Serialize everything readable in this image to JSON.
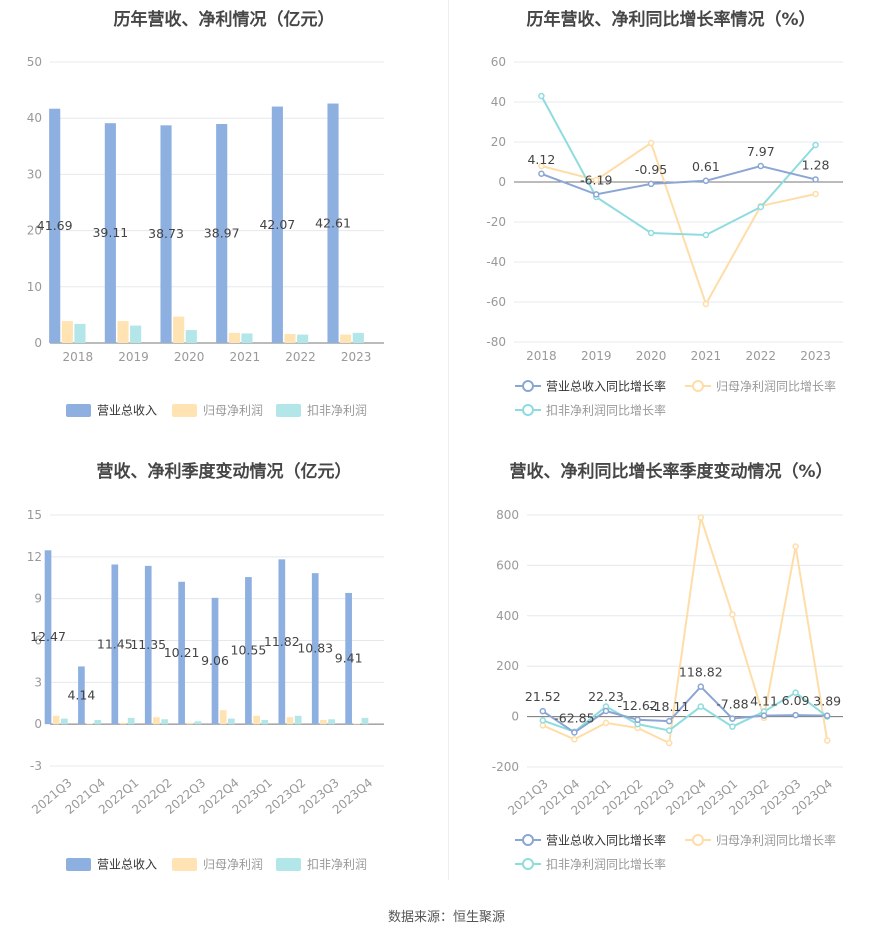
{
  "colors": {
    "revenue": "#8eb0e0",
    "net_profit": "#ffe3b3",
    "deducted_profit": "#b2e6e8",
    "revenue_line": "#8ba6d4",
    "net_profit_line": "#ffdda8",
    "deducted_line": "#8fdcdf",
    "grid": "#e6e8ee",
    "axis_text": "#999999"
  },
  "source": "数据来源：恒生聚源",
  "charts": [
    {
      "id": "annual-amount",
      "title": "历年营收、净利情况（亿元）",
      "chart_data": {
        "type": "bar",
        "categories": [
          "2018",
          "2019",
          "2020",
          "2021",
          "2022",
          "2023"
        ],
        "ylim": [
          0,
          50
        ],
        "yticks": [
          0,
          10,
          20,
          30,
          40,
          50
        ],
        "grid": true,
        "legend_position": "bottom",
        "series": [
          {
            "name": "营业总收入",
            "values": [
              41.69,
              39.11,
              38.73,
              38.97,
              42.07,
              42.61
            ],
            "labels": [
              "41.69",
              "39.11",
              "38.73",
              "38.97",
              "42.07",
              "42.61"
            ]
          },
          {
            "name": "归母净利润",
            "values": [
              3.9,
              3.9,
              4.7,
              1.8,
              1.6,
              1.5
            ]
          },
          {
            "name": "扣非净利润",
            "values": [
              3.4,
              3.1,
              2.3,
              1.7,
              1.5,
              1.8
            ]
          }
        ]
      }
    },
    {
      "id": "annual-growth",
      "title": "历年营收、净利同比增长率情况（%）",
      "chart_data": {
        "type": "line",
        "categories": [
          "2018",
          "2019",
          "2020",
          "2021",
          "2022",
          "2023"
        ],
        "ylim": [
          -80,
          60
        ],
        "yticks": [
          -80,
          -60,
          -40,
          -20,
          0,
          20,
          40,
          60
        ],
        "grid": true,
        "legend_position": "bottom",
        "series": [
          {
            "name": "营业总收入同比增长率",
            "values": [
              4.12,
              -6.19,
              -0.95,
              0.61,
              7.97,
              1.28
            ],
            "labels": [
              "4.12",
              "-6.19",
              "-0.95",
              "0.61",
              "7.97",
              "1.28"
            ]
          },
          {
            "name": "归母净利润同比增长率",
            "values": [
              8,
              1,
              19.5,
              -61,
              -12,
              -6
            ]
          },
          {
            "name": "扣非净利润同比增长率",
            "values": [
              43,
              -7.5,
              -25.5,
              -26.5,
              -12.5,
              18.5
            ]
          }
        ]
      }
    },
    {
      "id": "quarterly-amount",
      "title": "营收、净利季度变动情况（亿元）",
      "chart_data": {
        "type": "bar",
        "categories": [
          "2021Q3",
          "2021Q4",
          "2022Q1",
          "2022Q2",
          "2022Q3",
          "2022Q4",
          "2023Q1",
          "2023Q2",
          "2023Q3",
          "2023Q4"
        ],
        "ylim": [
          -3,
          15
        ],
        "yticks": [
          -3,
          0,
          3,
          6,
          9,
          12,
          15
        ],
        "grid": true,
        "legend_position": "bottom",
        "series": [
          {
            "name": "营业总收入",
            "values": [
              12.47,
              4.14,
              11.45,
              11.35,
              10.21,
              9.06,
              10.55,
              11.82,
              10.83,
              9.41
            ],
            "labels": [
              "12.47",
              "4.14",
              "11.45",
              "11.35",
              "10.21",
              "9.06",
              "10.55",
              "11.82",
              "10.83",
              "9.41"
            ]
          },
          {
            "name": "归母净利润",
            "values": [
              0.6,
              0.05,
              0.1,
              0.5,
              0.1,
              1.0,
              0.6,
              0.5,
              0.3,
              0.05
            ]
          },
          {
            "name": "扣非净利润",
            "values": [
              0.4,
              0.3,
              0.45,
              0.35,
              0.2,
              0.4,
              0.3,
              0.6,
              0.35,
              0.45
            ]
          }
        ]
      }
    },
    {
      "id": "quarterly-growth",
      "title": "营收、净利同比增长率季度变动情况（%）",
      "chart_data": {
        "type": "line",
        "categories": [
          "2021Q3",
          "2021Q4",
          "2022Q1",
          "2022Q2",
          "2022Q3",
          "2022Q4",
          "2023Q1",
          "2023Q2",
          "2023Q3",
          "2023Q4"
        ],
        "ylim": [
          -200,
          800
        ],
        "yticks": [
          -200,
          0,
          200,
          400,
          600,
          800
        ],
        "grid": true,
        "legend_position": "bottom",
        "series": [
          {
            "name": "营业总收入同比增长率",
            "values": [
              21.52,
              -62.85,
              22.23,
              -12.62,
              -18.11,
              118.82,
              -7.88,
              4.11,
              6.09,
              3.89
            ],
            "labels": [
              "21.52",
              "-62.85",
              "22.23",
              "-12.62",
              "-18.11",
              "118.82",
              "-7.88",
              "4.11",
              "6.09",
              "3.89"
            ]
          },
          {
            "name": "归母净利润同比增长率",
            "values": [
              -35,
              -90,
              -25,
              -45,
              -105,
              790,
              405,
              -5,
              675,
              -95
            ]
          },
          {
            "name": "扣非净利润同比增长率",
            "values": [
              -15,
              -60,
              40,
              -30,
              -55,
              40,
              -40,
              20,
              95,
              0
            ]
          }
        ]
      }
    }
  ]
}
